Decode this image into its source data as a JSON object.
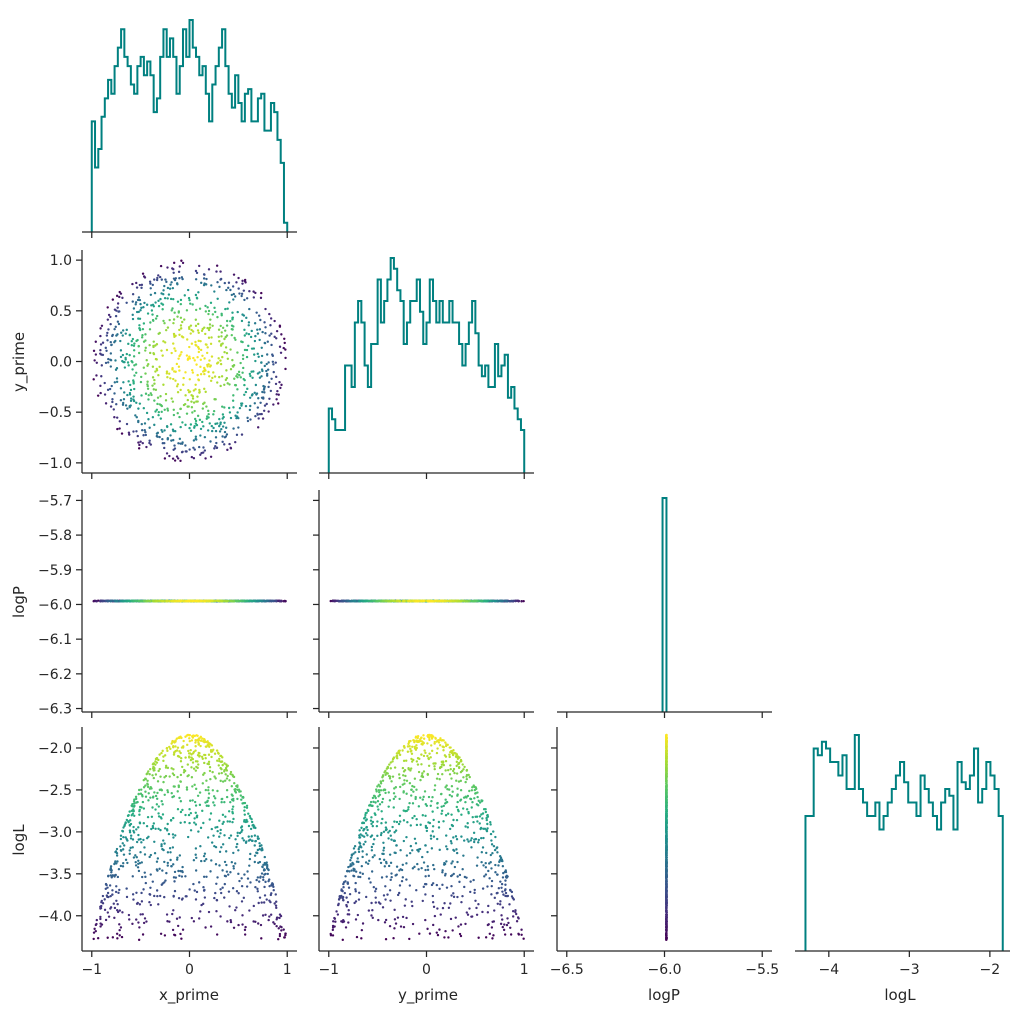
{
  "chart_data": {
    "type": "pairplot",
    "variables": [
      "x_prime",
      "y_prime",
      "logP",
      "logL"
    ],
    "axis_labels": {
      "x": [
        "x_prime",
        "y_prime",
        "logP",
        "logL"
      ],
      "y": [
        "",
        "y_prime",
        "logP",
        "logL"
      ]
    },
    "ticks": {
      "x_prime": {
        "values": [
          -1,
          0,
          1
        ],
        "labels": [
          "−1",
          "0",
          "1"
        ],
        "lim": [
          -1.1,
          1.1
        ]
      },
      "y_prime": {
        "values": [
          -1,
          -0.5,
          0,
          0.5,
          1
        ],
        "labels": [
          "−1.0",
          "−0.5",
          "0.0",
          "0.5",
          "1.0"
        ],
        "lim": [
          -1.1,
          1.1
        ],
        "xvalues": [
          -1,
          0,
          1
        ],
        "xlabels": [
          "−1",
          "0",
          "1"
        ]
      },
      "logP": {
        "values": [
          -6.3,
          -6.2,
          -6.1,
          -6.0,
          -5.9,
          -5.8,
          -5.7
        ],
        "labels": [
          "−6.3",
          "−6.2",
          "−6.1",
          "−6.0",
          "−5.9",
          "−5.8",
          "−5.7"
        ],
        "lim": [
          -6.31,
          -5.67
        ],
        "xvalues": [
          -6.5,
          -6.0,
          -5.5
        ],
        "xlabels": [
          "−6.5",
          "−6.0",
          "−5.5"
        ],
        "xlim": [
          -6.55,
          -5.45
        ]
      },
      "logL": {
        "values": [
          -4.0,
          -3.5,
          -3.0,
          -2.5,
          -2.0
        ],
        "labels": [
          "−4.0",
          "−3.5",
          "−3.0",
          "−2.5",
          "−2.0"
        ],
        "lim": [
          -4.42,
          -1.75
        ],
        "xvalues": [
          -4,
          -3,
          -2
        ],
        "xlabels": [
          "−4",
          "−3",
          "−2"
        ],
        "xlim": [
          -4.42,
          -1.75
        ]
      }
    },
    "diagonal": {
      "type": "step_histogram",
      "color": "#008080",
      "x_prime": {
        "range": [
          -1,
          1
        ],
        "counts": [
          24,
          14,
          18,
          25,
          29,
          33,
          30,
          36,
          40,
          44,
          38,
          36,
          32,
          30,
          36,
          38,
          34,
          37,
          34,
          26,
          29,
          38,
          44,
          38,
          42,
          38,
          30,
          36,
          44,
          38,
          46,
          40,
          38,
          34,
          36,
          30,
          24,
          32,
          36,
          40,
          44,
          36,
          30,
          27,
          34,
          28,
          24,
          30,
          31,
          24,
          24,
          29,
          30,
          22,
          22,
          28,
          26,
          20,
          15,
          2
        ]
      },
      "y_prime": {
        "range": [
          -1,
          1
        ],
        "counts": [
          6,
          5,
          4,
          4,
          4,
          10,
          10,
          8,
          14,
          16,
          14,
          10,
          8,
          12,
          12,
          18,
          14,
          16,
          18,
          20,
          19,
          17,
          16,
          12,
          14,
          16,
          16,
          18,
          15,
          12,
          14,
          18,
          16,
          14,
          16,
          14,
          14,
          16,
          14,
          14,
          12,
          10,
          12,
          14,
          16,
          13,
          10,
          9,
          10,
          8,
          8,
          12,
          9,
          10,
          11,
          7,
          8,
          6,
          5,
          4
        ]
      },
      "logP": {
        "range": [
          -6.01,
          -5.99
        ],
        "bins": 1,
        "counts": [
          1000
        ]
      },
      "logL": {
        "range": [
          -4.29,
          -1.84
        ],
        "counts": [
          20,
          20,
          30,
          29,
          31,
          30,
          28,
          28,
          26,
          29,
          24,
          24,
          32,
          24,
          22,
          20,
          20,
          22,
          18,
          20,
          22,
          24,
          26,
          28,
          25,
          22,
          22,
          20,
          26,
          24,
          22,
          20,
          18,
          22,
          24,
          23,
          18,
          28,
          25,
          24,
          26,
          30,
          22,
          24,
          28,
          26,
          24,
          20
        ]
      }
    },
    "scatter": {
      "colormap": "viridis",
      "color_variable": "logL",
      "n_points": 1000,
      "note_values": {
        "logP_constant": -5.99,
        "logL_max": -1.84,
        "logL_min": -4.29,
        "disk_radius": 1.0
      }
    },
    "layout": "lower-triangle (corner)"
  }
}
